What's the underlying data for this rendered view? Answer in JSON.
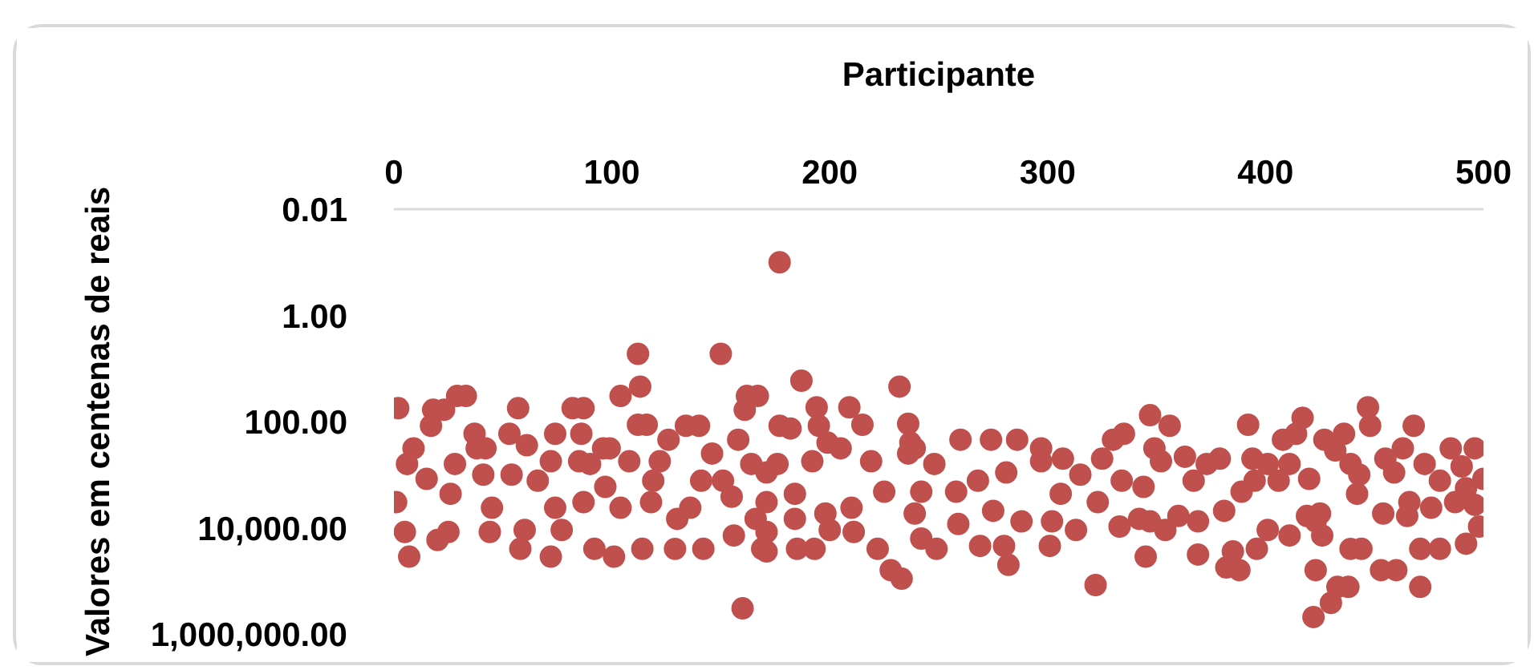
{
  "chart_data": {
    "type": "scatter",
    "xlabel": "Participante",
    "ylabel": "Valores em centenas de reais",
    "x": [
      2,
      112,
      150,
      160,
      177,
      113,
      33,
      29,
      57,
      82,
      87,
      104,
      112,
      116,
      18,
      23,
      17,
      74,
      86,
      53,
      134,
      140,
      126,
      162,
      161,
      9,
      6,
      1,
      5,
      7,
      20,
      25,
      26,
      15,
      28,
      38,
      42,
      37,
      41,
      45,
      44,
      58,
      60,
      54,
      61,
      72,
      66,
      74,
      72,
      77,
      85,
      90,
      96,
      99,
      87,
      92,
      101,
      97,
      104,
      108,
      114,
      119,
      122,
      118,
      129,
      130,
      136,
      142,
      141,
      146,
      151,
      155,
      158,
      156,
      166,
      169,
      164,
      187,
      232,
      194,
      209,
      215,
      195,
      236,
      177,
      182,
      167,
      347,
      199,
      205,
      237,
      239,
      260,
      274,
      286,
      297,
      330,
      335,
      349,
      176,
      192,
      219,
      248,
      236,
      171,
      184,
      171,
      198,
      210,
      225,
      239,
      242,
      258,
      275,
      268,
      281,
      297,
      307,
      315,
      325,
      334,
      323,
      306,
      288,
      302,
      313,
      333,
      342,
      171,
      171,
      185,
      193,
      184,
      200,
      211,
      222,
      228,
      233,
      242,
      249,
      259,
      269,
      280,
      282,
      301,
      322,
      345,
      347,
      356,
      392,
      417,
      408,
      414,
      427,
      436,
      432,
      447,
      448,
      468,
      485,
      496,
      463,
      455,
      500,
      496,
      498,
      492,
      480,
      471,
      471,
      453,
      460,
      454,
      465,
      443,
      442,
      439,
      422,
      430,
      433,
      438,
      423,
      439,
      444,
      426,
      419,
      425,
      406,
      411,
      420,
      382,
      385,
      388,
      369,
      396,
      401,
      411,
      423,
      389,
      395,
      394,
      401,
      363,
      373,
      379,
      352,
      367,
      354,
      369,
      360,
      381,
      344,
      459,
      473,
      480,
      490,
      492,
      466,
      476,
      487
    ],
    "values": [
      56,
      5.3,
      5.3,
      330000,
      0.1,
      22,
      33,
      33,
      56,
      56,
      56,
      33,
      115,
      115,
      60,
      60,
      120,
      170,
      170,
      170,
      120,
      120,
      220,
      33,
      60,
      320,
      630,
      3300,
      12000,
      35000,
      17000,
      12000,
      2300,
      1200,
      630,
      320,
      320,
      170,
      1000,
      4200,
      12000,
      25000,
      11000,
      1000,
      280,
      560,
      1300,
      4200,
      35000,
      11000,
      560,
      630,
      320,
      320,
      3300,
      25000,
      35000,
      1700,
      4200,
      560,
      25000,
      1300,
      560,
      3300,
      25000,
      6800,
      4200,
      25000,
      1300,
      400,
      1300,
      2600,
      220,
      14000,
      6800,
      25000,
      630,
      17,
      22,
      54,
      54,
      115,
      120,
      110,
      120,
      135,
      33,
      76,
      250,
      320,
      250,
      320,
      220,
      220,
      220,
      320,
      220,
      170,
      320,
      630,
      560,
      560,
      630,
      400,
      910,
      2300,
      3300,
      5400,
      4200,
      2100,
      5400,
      2100,
      2100,
      4800,
      1300,
      910,
      560,
      500,
      1000,
      500,
      1300,
      3300,
      2300,
      7600,
      7600,
      11000,
      9500,
      6800,
      12000,
      28000,
      25000,
      25000,
      6800,
      11000,
      12000,
      25000,
      63000,
      91000,
      16000,
      25000,
      8500,
      22000,
      22000,
      50000,
      22000,
      120000,
      35000,
      7600,
      120,
      115,
      85,
      220,
      170,
      220,
      170,
      350,
      54,
      120,
      120,
      320,
      320,
      320,
      500,
      1200,
      3700,
      9500,
      20000,
      25000,
      25000,
      130000,
      63000,
      63000,
      5400,
      6000,
      1000,
      2300,
      630,
      480000,
      260000,
      130000,
      130000,
      63000,
      25000,
      25000,
      14000,
      6000,
      5400,
      1300,
      630,
      1200,
      56000,
      28000,
      63000,
      32000,
      25000,
      11000,
      14000,
      7600,
      2100,
      1300,
      500,
      630,
      460,
      630,
      500,
      560,
      1300,
      11000,
      7600,
      6000,
      4800,
      1700,
      910,
      630,
      1300,
      700,
      1800,
      3300,
      4200,
      3300
    ],
    "color": "#c0504d",
    "marker": "circle",
    "xlim": [
      0,
      500
    ],
    "xticks": [
      0,
      100,
      200,
      300,
      400,
      500
    ],
    "ylim": [
      1000000,
      0.01
    ],
    "yticks": [
      0.01,
      {
        "value": 1,
        "label": "1.00"
      },
      {
        "value": 100,
        "label": "100.00"
      },
      {
        "value": 10000,
        "label": "10,000.00"
      },
      {
        "value": 1000000,
        "label": "1,000,000.00"
      }
    ],
    "log": "y",
    "grid": false
  }
}
